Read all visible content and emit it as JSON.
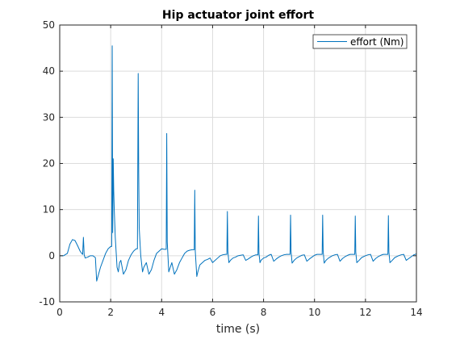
{
  "chart_data": {
    "type": "line",
    "title": "Hip actuator joint effort",
    "xlabel": "time (s)",
    "ylabel": "",
    "xlim": [
      0,
      14
    ],
    "ylim": [
      -10,
      50
    ],
    "xticks": [
      0,
      2,
      4,
      6,
      8,
      10,
      12,
      14
    ],
    "yticks": [
      -10,
      0,
      10,
      20,
      30,
      40,
      50
    ],
    "grid": true,
    "legend_position": "top-right",
    "line_color": "#0072bd",
    "series": [
      {
        "name": "effort (Nm)",
        "x": [
          0,
          0.15,
          0.3,
          0.4,
          0.5,
          0.6,
          0.7,
          0.8,
          0.85,
          0.9,
          0.93,
          0.96,
          1.0,
          1.1,
          1.2,
          1.3,
          1.4,
          1.45,
          1.5,
          1.6,
          1.7,
          1.8,
          1.9,
          2.0,
          2.04,
          2.06,
          2.08,
          2.1,
          2.12,
          2.14,
          2.18,
          2.25,
          2.3,
          2.35,
          2.4,
          2.5,
          2.6,
          2.7,
          2.8,
          2.9,
          3.0,
          3.05,
          3.08,
          3.1,
          3.12,
          3.18,
          3.25,
          3.3,
          3.35,
          3.4,
          3.5,
          3.6,
          3.7,
          3.8,
          3.9,
          4.0,
          4.1,
          4.18,
          4.2,
          4.22,
          4.28,
          4.32,
          4.4,
          4.5,
          4.6,
          4.7,
          4.8,
          4.9,
          5.0,
          5.1,
          5.2,
          5.28,
          5.3,
          5.32,
          5.38,
          5.42,
          5.5,
          5.6,
          5.7,
          5.8,
          5.9,
          6.0,
          6.1,
          6.2,
          6.3,
          6.4,
          6.5,
          6.56,
          6.58,
          6.6,
          6.64,
          6.7,
          6.8,
          6.9,
          7.0,
          7.1,
          7.2,
          7.3,
          7.4,
          7.5,
          7.6,
          7.7,
          7.78,
          7.8,
          7.82,
          7.86,
          7.9,
          8.0,
          8.1,
          8.2,
          8.3,
          8.4,
          8.5,
          8.6,
          8.7,
          8.8,
          8.9,
          9.0,
          9.04,
          9.06,
          9.08,
          9.12,
          9.2,
          9.3,
          9.4,
          9.5,
          9.6,
          9.7,
          9.8,
          9.9,
          10.0,
          10.1,
          10.2,
          10.3,
          10.32,
          10.34,
          10.38,
          10.45,
          10.55,
          10.7,
          10.8,
          10.9,
          11.0,
          11.1,
          11.2,
          11.3,
          11.4,
          11.5,
          11.58,
          11.6,
          11.62,
          11.66,
          11.75,
          11.85,
          12.0,
          12.1,
          12.2,
          12.3,
          12.4,
          12.5,
          12.6,
          12.7,
          12.8,
          12.88,
          12.9,
          12.92,
          12.96,
          13.05,
          13.15,
          13.3,
          13.4,
          13.5,
          13.6,
          13.7,
          13.8,
          13.9,
          14.0
        ],
        "y": [
          0,
          0,
          0.5,
          2.5,
          3.5,
          3.3,
          2.2,
          1.0,
          0.6,
          0.3,
          4.0,
          0.2,
          -0.5,
          -0.3,
          0,
          0,
          -0.4,
          -5.5,
          -4.5,
          -2.5,
          -1.0,
          0.5,
          1.5,
          2.0,
          2.0,
          45.5,
          5.0,
          21.0,
          14.0,
          10.0,
          4.0,
          -2.5,
          -3.5,
          -1.5,
          -1.0,
          -4.0,
          -3.0,
          -1.0,
          0.2,
          1.0,
          1.5,
          1.5,
          39.5,
          18.0,
          6.0,
          0.0,
          -3.5,
          -2.5,
          -2.0,
          -1.5,
          -4.0,
          -3.0,
          -1.0,
          0.5,
          1.0,
          1.5,
          1.4,
          1.4,
          26.5,
          3.0,
          -3.5,
          -2.8,
          -1.5,
          -4.0,
          -3.0,
          -1.5,
          -0.5,
          0.5,
          1.0,
          1.2,
          1.3,
          1.3,
          14.2,
          1.0,
          -4.5,
          -3.5,
          -2.0,
          -1.5,
          -1.0,
          -0.8,
          -0.5,
          -1.5,
          -1.0,
          -0.5,
          0,
          0.2,
          0.3,
          0.3,
          9.6,
          1.0,
          -1.5,
          -1.0,
          -0.5,
          -0.3,
          0,
          0.1,
          0.2,
          -1.0,
          -0.7,
          -0.3,
          0,
          0.2,
          0.2,
          8.6,
          0.5,
          -1.5,
          -1.0,
          -0.5,
          -0.3,
          0.1,
          0.3,
          -1.2,
          -0.7,
          -0.3,
          0,
          0.2,
          0.3,
          0.3,
          0.3,
          8.8,
          1.0,
          -1.6,
          -1.0,
          -0.5,
          -0.2,
          0.1,
          0.2,
          -1.2,
          -0.7,
          -0.3,
          0.1,
          0.3,
          0.3,
          0.3,
          8.8,
          1.0,
          -1.6,
          -1.0,
          -0.5,
          0,
          0.2,
          0.3,
          -1.2,
          -0.6,
          -0.2,
          0.1,
          0.3,
          0.3,
          0.3,
          8.6,
          0.8,
          -1.5,
          -1.0,
          -0.4,
          0,
          0.2,
          0.3,
          -1.2,
          -0.6,
          -0.2,
          0.1,
          0.3,
          0.3,
          0.3,
          8.7,
          0.8,
          -1.5,
          -1.0,
          -0.4,
          0,
          0.2,
          0.3,
          -1.0,
          -0.6,
          -0.2,
          0.2,
          0.4
        ]
      }
    ]
  }
}
